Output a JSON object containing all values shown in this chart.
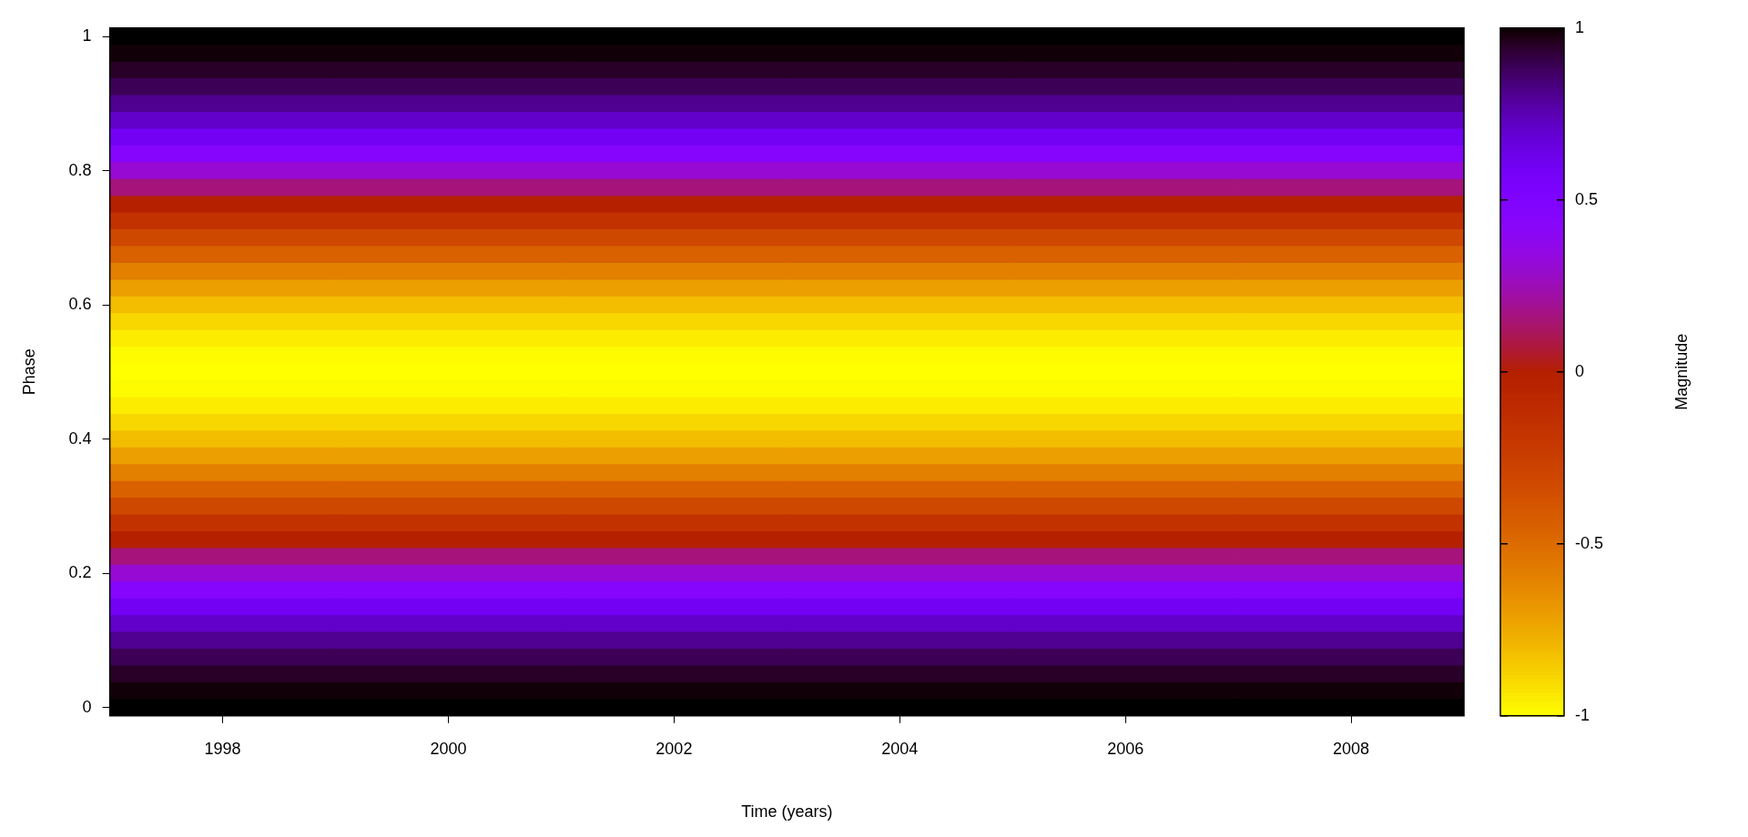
{
  "chart_data": {
    "type": "heatmap",
    "xlabel": "Time (years)",
    "ylabel": "Phase",
    "clabel": "Magnitude",
    "categories": [
      "1998",
      "2000",
      "2002",
      "2004",
      "2006",
      "2008"
    ],
    "y_categories": [
      "1",
      null,
      null,
      null,
      null,
      null,
      null,
      null,
      "0.8",
      null,
      null,
      null,
      null,
      null,
      null,
      null,
      "0.6",
      null,
      null,
      null,
      null,
      null,
      null,
      null,
      "0.4",
      null,
      null,
      null,
      null,
      null,
      null,
      null,
      "0.2",
      null,
      null,
      null,
      null,
      null,
      null,
      null,
      "0"
    ],
    "cells": [
      [
        1,
        1,
        1,
        1,
        1,
        1
      ],
      [
        0.99,
        0.99,
        0.99,
        0.99,
        0.99,
        0.99
      ],
      [
        0.95,
        0.95,
        0.95,
        0.95,
        0.95,
        0.95
      ],
      [
        0.89,
        0.89,
        0.89,
        0.89,
        0.89,
        0.89
      ],
      [
        0.81,
        0.81,
        0.81,
        0.81,
        0.81,
        0.81
      ],
      [
        0.71,
        0.71,
        0.71,
        0.71,
        0.71,
        0.71
      ],
      [
        0.59,
        0.59,
        0.59,
        0.59,
        0.59,
        0.59
      ],
      [
        0.45,
        0.45,
        0.45,
        0.45,
        0.45,
        0.45
      ],
      [
        0.31,
        0.31,
        0.31,
        0.31,
        0.31,
        0.31
      ],
      [
        0.16,
        0.16,
        0.16,
        0.16,
        0.16,
        0.16
      ],
      [
        0,
        0,
        0,
        0,
        0,
        0
      ],
      [
        -0.16,
        -0.16,
        -0.16,
        -0.16,
        -0.16,
        -0.16
      ],
      [
        -0.31,
        -0.31,
        -0.31,
        -0.31,
        -0.31,
        -0.31
      ],
      [
        -0.45,
        -0.45,
        -0.45,
        -0.45,
        -0.45,
        -0.45
      ],
      [
        -0.59,
        -0.59,
        -0.59,
        -0.59,
        -0.59,
        -0.59
      ],
      [
        -0.71,
        -0.71,
        -0.71,
        -0.71,
        -0.71,
        -0.71
      ],
      [
        -0.81,
        -0.81,
        -0.81,
        -0.81,
        -0.81,
        -0.81
      ],
      [
        -0.89,
        -0.89,
        -0.89,
        -0.89,
        -0.89,
        -0.89
      ],
      [
        -0.95,
        -0.95,
        -0.95,
        -0.95,
        -0.95,
        -0.95
      ],
      [
        -0.99,
        -0.99,
        -0.99,
        -0.99,
        -0.99,
        -0.99
      ],
      [
        -1,
        -1,
        -1,
        -1,
        -1,
        -1
      ],
      [
        -0.99,
        -0.99,
        -0.99,
        -0.99,
        -0.99,
        -0.99
      ],
      [
        -0.95,
        -0.95,
        -0.95,
        -0.95,
        -0.95,
        -0.95
      ],
      [
        -0.89,
        -0.89,
        -0.89,
        -0.89,
        -0.89,
        -0.89
      ],
      [
        -0.81,
        -0.81,
        -0.81,
        -0.81,
        -0.81,
        -0.81
      ],
      [
        -0.71,
        -0.71,
        -0.71,
        -0.71,
        -0.71,
        -0.71
      ],
      [
        -0.59,
        -0.59,
        -0.59,
        -0.59,
        -0.59,
        -0.59
      ],
      [
        -0.45,
        -0.45,
        -0.45,
        -0.45,
        -0.45,
        -0.45
      ],
      [
        -0.31,
        -0.31,
        -0.31,
        -0.31,
        -0.31,
        -0.31
      ],
      [
        -0.16,
        -0.16,
        -0.16,
        -0.16,
        -0.16,
        -0.16
      ],
      [
        0,
        0,
        0,
        0,
        0,
        0
      ],
      [
        0.16,
        0.16,
        0.16,
        0.16,
        0.16,
        0.16
      ],
      [
        0.31,
        0.31,
        0.31,
        0.31,
        0.31,
        0.31
      ],
      [
        0.45,
        0.45,
        0.45,
        0.45,
        0.45,
        0.45
      ],
      [
        0.59,
        0.59,
        0.59,
        0.59,
        0.59,
        0.59
      ],
      [
        0.71,
        0.71,
        0.71,
        0.71,
        0.71,
        0.71
      ],
      [
        0.81,
        0.81,
        0.81,
        0.81,
        0.81,
        0.81
      ],
      [
        0.89,
        0.89,
        0.89,
        0.89,
        0.89,
        0.89
      ],
      [
        0.95,
        0.95,
        0.95,
        0.95,
        0.95,
        0.95
      ],
      [
        0.99,
        0.99,
        0.99,
        0.99,
        0.99,
        0.99
      ],
      [
        1,
        1,
        1,
        1,
        1,
        1
      ]
    ],
    "clim": [
      -1,
      1
    ],
    "cticks": [
      -1,
      -0.5,
      0,
      0.5,
      1
    ]
  }
}
